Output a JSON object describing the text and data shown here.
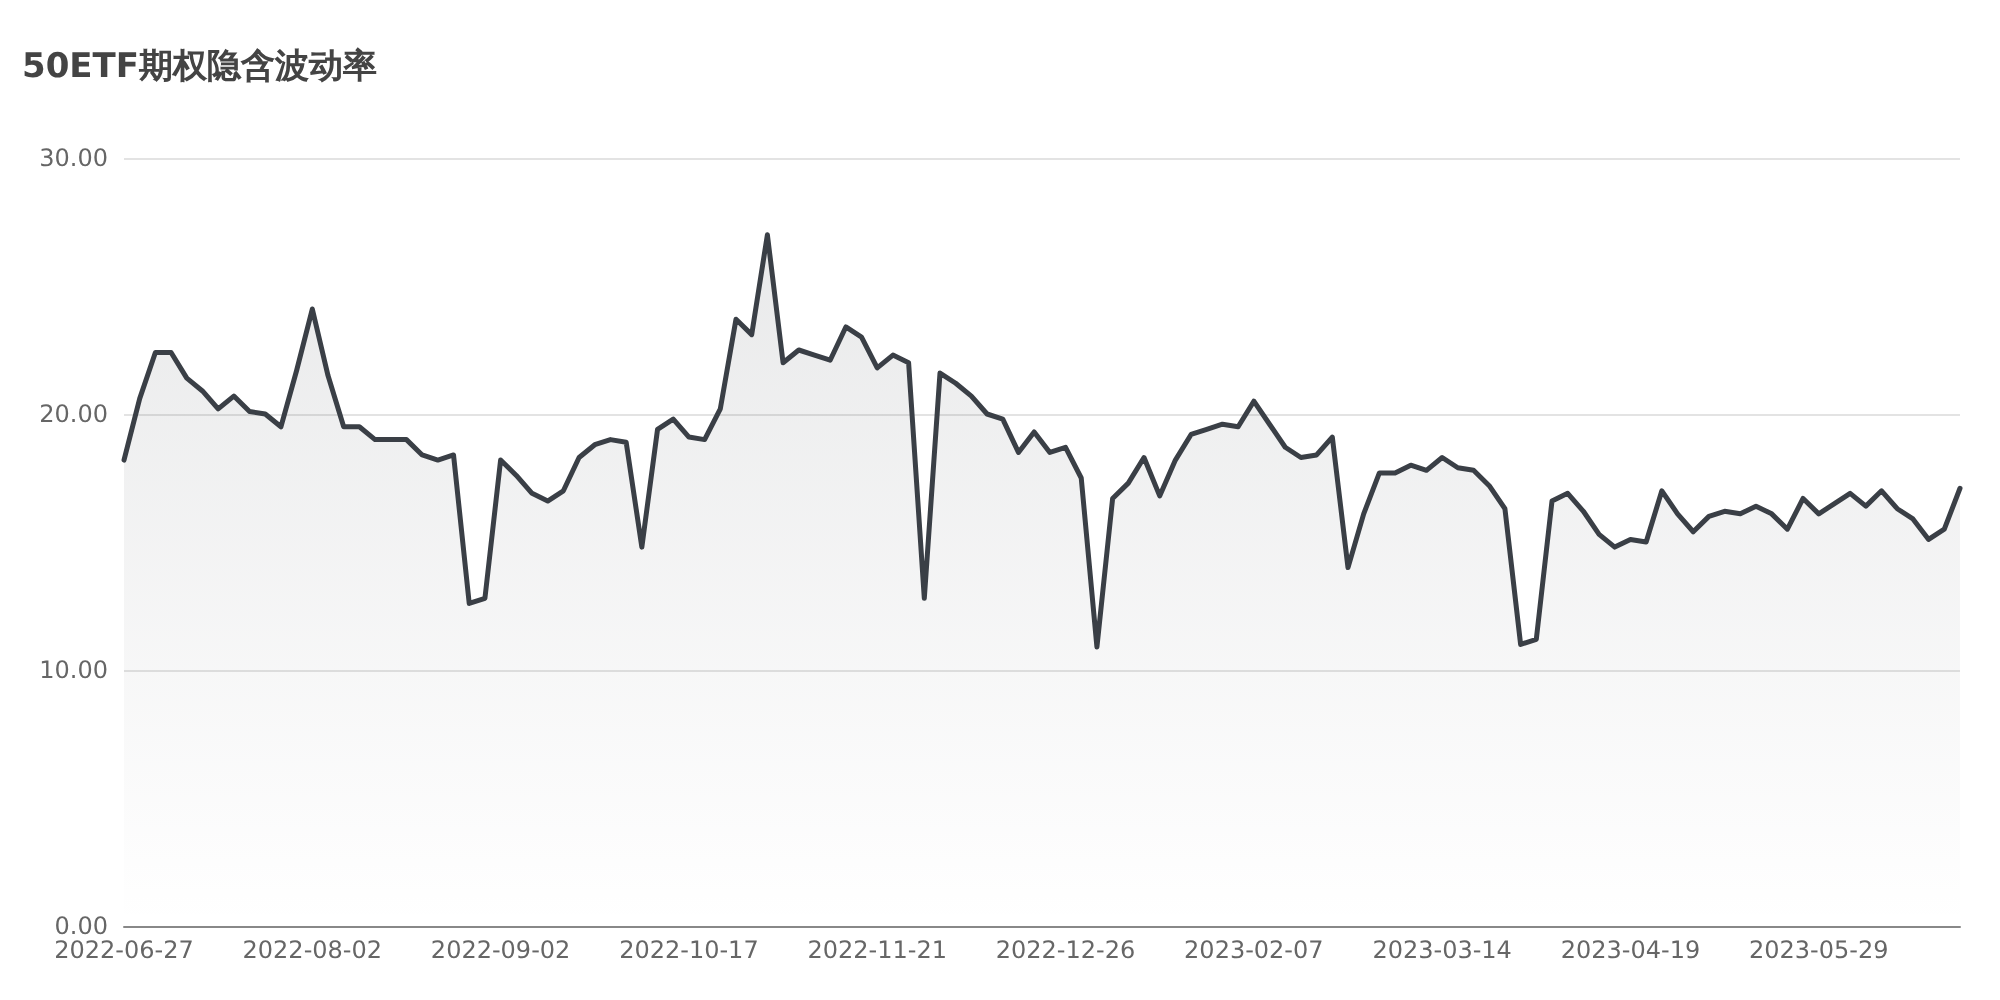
{
  "chart_data": {
    "type": "area",
    "title": "50ETF期权隐含波动率",
    "categories": [
      "2022-06-27",
      null,
      null,
      null,
      null,
      null,
      null,
      null,
      null,
      null,
      null,
      null,
      "2022-08-02",
      null,
      null,
      null,
      null,
      null,
      null,
      null,
      null,
      null,
      null,
      null,
      "2022-09-02",
      null,
      null,
      null,
      null,
      null,
      null,
      null,
      null,
      null,
      null,
      null,
      "2022-10-17",
      null,
      null,
      null,
      null,
      null,
      null,
      null,
      null,
      null,
      null,
      null,
      "2022-11-21",
      null,
      null,
      null,
      null,
      null,
      null,
      null,
      null,
      null,
      null,
      null,
      "2022-12-26",
      null,
      null,
      null,
      null,
      null,
      null,
      null,
      null,
      null,
      null,
      null,
      "2023-02-07",
      null,
      null,
      null,
      null,
      null,
      null,
      null,
      null,
      null,
      null,
      null,
      "2023-03-14",
      null,
      null,
      null,
      null,
      null,
      null,
      null,
      null,
      null,
      null,
      null,
      "2023-04-19",
      null,
      null,
      null,
      null,
      null,
      null,
      null,
      null,
      null,
      null,
      null,
      "2023-05-29",
      null,
      null,
      null,
      null,
      null,
      null,
      null,
      null,
      null
    ],
    "series": [
      {
        "color": "#3a3f46",
        "values": [
          18.2,
          20.6,
          22.4,
          22.4,
          21.4,
          20.9,
          20.2,
          20.7,
          20.1,
          20.0,
          19.5,
          21.7,
          24.1,
          21.5,
          19.5,
          19.5,
          19.0,
          19.0,
          19.0,
          18.4,
          18.2,
          18.4,
          12.6,
          12.8,
          18.2,
          17.6,
          16.9,
          16.6,
          17.0,
          18.3,
          18.8,
          19.0,
          18.9,
          14.8,
          19.4,
          19.8,
          19.1,
          19.0,
          20.2,
          23.7,
          23.1,
          27.0,
          22.0,
          22.5,
          22.3,
          22.1,
          23.4,
          23.0,
          21.8,
          22.3,
          22.0,
          12.8,
          21.6,
          21.2,
          20.7,
          20.0,
          19.8,
          18.5,
          19.3,
          18.5,
          18.7,
          17.5,
          10.9,
          16.7,
          17.3,
          18.3,
          16.8,
          18.2,
          19.2,
          19.4,
          19.6,
          19.5,
          20.5,
          19.6,
          18.7,
          18.3,
          18.4,
          19.1,
          14.0,
          16.1,
          17.7,
          17.7,
          18.0,
          17.8,
          18.3,
          17.9,
          17.8,
          17.2,
          16.3,
          11.0,
          11.2,
          16.6,
          16.9,
          16.2,
          15.3,
          14.8,
          15.1,
          15.0,
          17.0,
          16.1,
          15.4,
          16.0,
          16.2,
          16.1,
          16.4,
          16.1,
          15.5,
          16.7,
          16.1,
          16.5,
          16.9,
          16.4,
          17.0,
          16.3,
          15.9,
          15.1,
          15.5,
          17.1
        ]
      }
    ],
    "ylim": [
      0,
      30
    ],
    "yticks": [
      {
        "value": 0,
        "label": "0.00"
      },
      {
        "value": 10,
        "label": "10.00"
      },
      {
        "value": 20,
        "label": "20.00"
      },
      {
        "value": 30,
        "label": "30.00"
      }
    ],
    "grid": "y",
    "marker": "none",
    "line_style": "solid"
  }
}
